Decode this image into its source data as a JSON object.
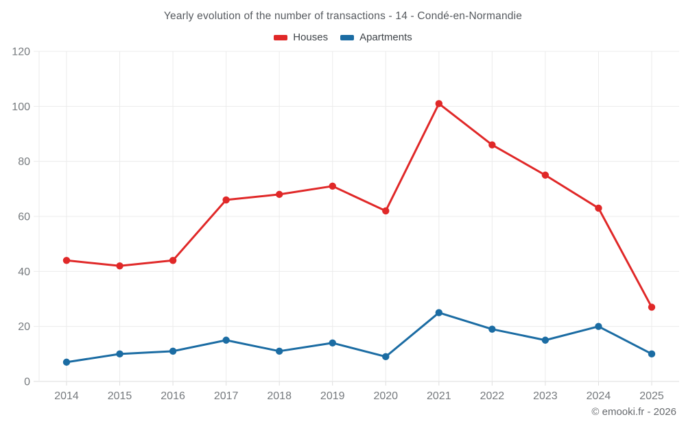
{
  "title": "Yearly evolution of the number of transactions - 14 - Condé-en-Normandie",
  "footer": "© emooki.fr - 2026",
  "colors": {
    "houses": "#e02828",
    "apartments": "#1b6ca3",
    "grid": "#ebebeb",
    "axis": "#dddddd",
    "tick_label": "#75797d",
    "title_text": "#55595e",
    "legend_text": "#3d4247"
  },
  "chart_data": {
    "type": "line",
    "title": "Yearly evolution of the number of transactions - 14 - Condé-en-Normandie",
    "categories": [
      "2014",
      "2015",
      "2016",
      "2017",
      "2018",
      "2019",
      "2020",
      "2021",
      "2022",
      "2023",
      "2024",
      "2025"
    ],
    "series": [
      {
        "name": "Houses",
        "color": "#e02828",
        "values": [
          44,
          42,
          44,
          66,
          68,
          71,
          62,
          101,
          86,
          75,
          63,
          27
        ]
      },
      {
        "name": "Apartments",
        "color": "#1b6ca3",
        "values": [
          7,
          10,
          11,
          15,
          11,
          14,
          9,
          25,
          19,
          15,
          20,
          10
        ]
      }
    ],
    "xlabel": "",
    "ylabel": "",
    "ylim": [
      0,
      120
    ],
    "yticks": [
      0,
      20,
      40,
      60,
      80,
      100,
      120
    ],
    "grid": true,
    "legend_position": "top"
  }
}
